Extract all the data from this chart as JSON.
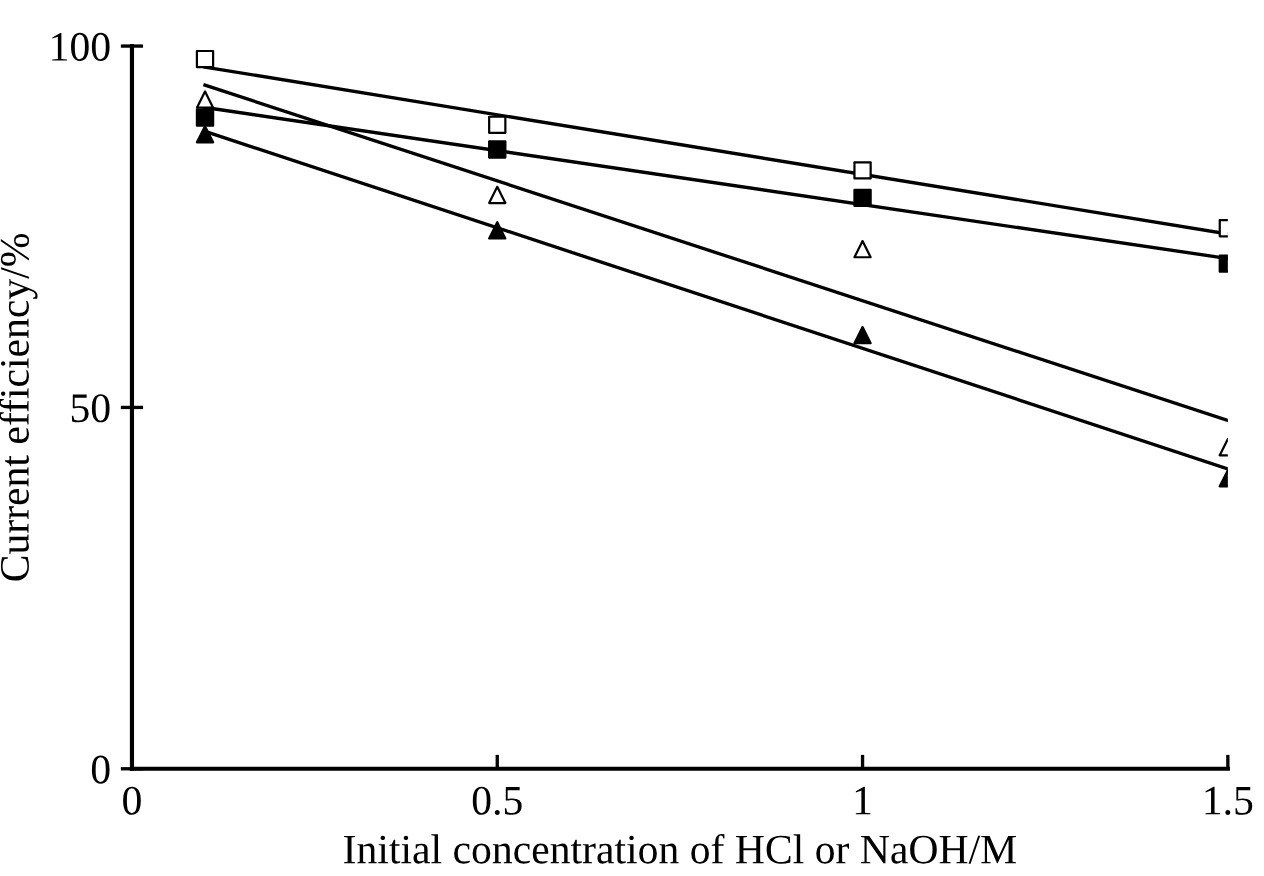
{
  "chart_data": {
    "type": "scatter",
    "xlabel": "Initial concentration of HCl or NaOH/M",
    "ylabel": "Current efficiency/%",
    "xlim": [
      0,
      1.5
    ],
    "xticks": [
      0,
      0.5,
      1,
      1.5
    ],
    "ylim": [
      0,
      100
    ],
    "yticks": [
      0,
      50,
      100
    ],
    "grid": false,
    "legend": false,
    "series": [
      {
        "marker": "square",
        "color": "#ffffff",
        "x": [
          0.1,
          0.5,
          1,
          1.5
        ],
        "values": [
          98.2,
          89.1,
          82.8,
          74.8
        ]
      },
      {
        "marker": "square",
        "color": "#000000",
        "x": [
          0.1,
          0.5,
          1,
          1.5
        ],
        "values": [
          90.1,
          85.7,
          79.0,
          69.9
        ]
      },
      {
        "marker": "triangle",
        "color": "#ffffff",
        "x": [
          0.1,
          0.5,
          1,
          1.5
        ],
        "values": [
          92.6,
          79.4,
          71.9,
          44.5
        ]
      },
      {
        "marker": "triangle",
        "color": "#000000",
        "x": [
          0.1,
          0.5,
          1,
          1.5
        ],
        "values": [
          87.8,
          74.5,
          60.0,
          40.2
        ]
      },
      {
        "type": "line",
        "line_style": "solid",
        "color": "#000000",
        "x": [
          0.1,
          1.5
        ],
        "values": [
          97.1,
          74.0
        ]
      },
      {
        "type": "line",
        "line_style": "solid",
        "color": "#000000",
        "x": [
          0.1,
          1.5
        ],
        "values": [
          91.5,
          70.6
        ]
      },
      {
        "type": "line",
        "line_style": "solid",
        "color": "#000000",
        "x": [
          0.1,
          1.5
        ],
        "values": [
          94.6,
          48.2
        ]
      },
      {
        "type": "line",
        "line_style": "solid",
        "color": "#000000",
        "x": [
          0.1,
          1.5
        ],
        "values": [
          88.2,
          41.5
        ]
      }
    ]
  }
}
